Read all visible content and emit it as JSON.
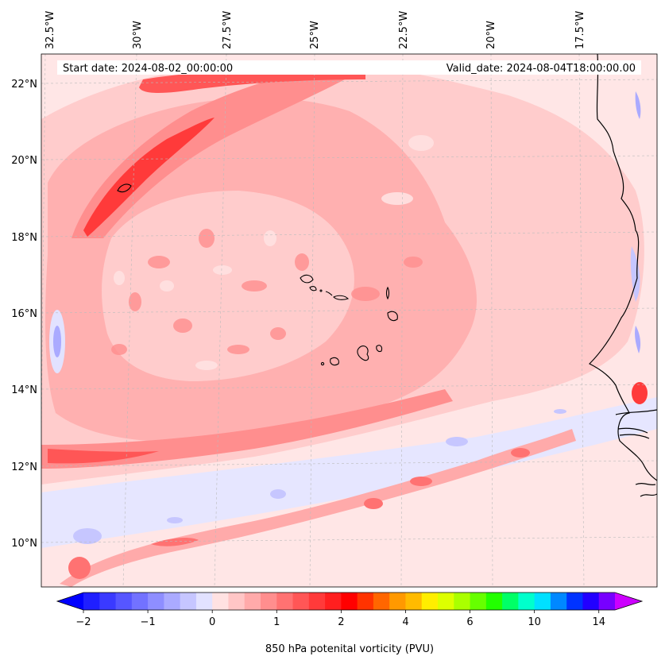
{
  "map": {
    "start_date": "Start date: 2024-08-02_00:00:00",
    "valid_date": "Valid_date: 2024-08-04T18:00:00.00",
    "lon_ticks": [
      "32.5°W",
      "30°W",
      "27.5°W",
      "25°W",
      "22.5°W",
      "20°W",
      "17.5°W"
    ],
    "lat_ticks": [
      "22°N",
      "20°N",
      "18°N",
      "16°N",
      "14°N",
      "12°N",
      "10°N"
    ],
    "field": "potential vorticity",
    "level": "850 hPa",
    "units": "PVU"
  },
  "colorbar": {
    "label": "850 hPa potenital vorticity (PVU)",
    "ticks": [
      "−2",
      "−1",
      "0",
      "1",
      "2",
      "4",
      "6",
      "10",
      "14"
    ],
    "colors": [
      "#1f1fff",
      "#3a3aff",
      "#5656ff",
      "#7272ff",
      "#8e8eff",
      "#aaaaff",
      "#c6c6ff",
      "#e2e2ff",
      "#ffe2e2",
      "#ffc6c6",
      "#ffaaaa",
      "#ff8e8e",
      "#ff7272",
      "#ff5656",
      "#ff3a3a",
      "#ff1f1f",
      "#ff0000",
      "#ff3300",
      "#ff6600",
      "#ff9900",
      "#ffbb00",
      "#ffee00",
      "#ddff00",
      "#aaff00",
      "#66ff00",
      "#22ff00",
      "#00ff66",
      "#00ffcc",
      "#00e0ff",
      "#0088ff",
      "#0033ff",
      "#2200ff",
      "#7700ff"
    ],
    "under_color": "#0000ff",
    "over_color": "#cc00ff"
  },
  "palette": {
    "background": "#ffe6e6",
    "light_red": "#ffcccc",
    "mid_red": "#ff9999",
    "red": "#ff6666",
    "strong_red": "#ff3333",
    "light_blue": "#e6e6ff",
    "blue": "#9999ff",
    "coastline": "#000000",
    "gridline": "#bbbbbb"
  }
}
